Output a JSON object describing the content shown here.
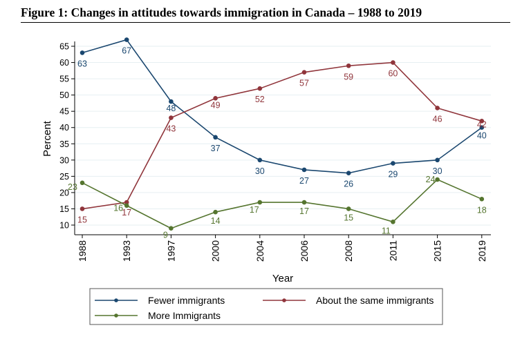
{
  "title": "Figure 1: Changes in attitudes towards immigration in Canada – 1988 to 2019",
  "chart_data": {
    "type": "line",
    "xlabel": "Year",
    "ylabel": "Percent",
    "categories": [
      "1988",
      "1993",
      "1997",
      "2000",
      "2004",
      "2006",
      "2008",
      "2011",
      "2015",
      "2019"
    ],
    "yticks": [
      10,
      15,
      20,
      25,
      30,
      35,
      40,
      45,
      50,
      55,
      60,
      65
    ],
    "ylim": [
      8,
      68
    ],
    "grid": true,
    "legend_position": "bottom",
    "series": [
      {
        "name": "Fewer immigrants",
        "color": "#1a476f",
        "values": [
          63,
          67,
          48,
          37,
          30,
          27,
          26,
          29,
          30,
          40
        ]
      },
      {
        "name": "About the same immigrants",
        "color": "#90353b",
        "values": [
          15,
          17,
          43,
          49,
          52,
          57,
          59,
          60,
          46,
          42
        ]
      },
      {
        "name": "More Immigrants",
        "color": "#55752f",
        "values": [
          23,
          16,
          9,
          14,
          17,
          17,
          15,
          11,
          24,
          18
        ]
      }
    ]
  }
}
